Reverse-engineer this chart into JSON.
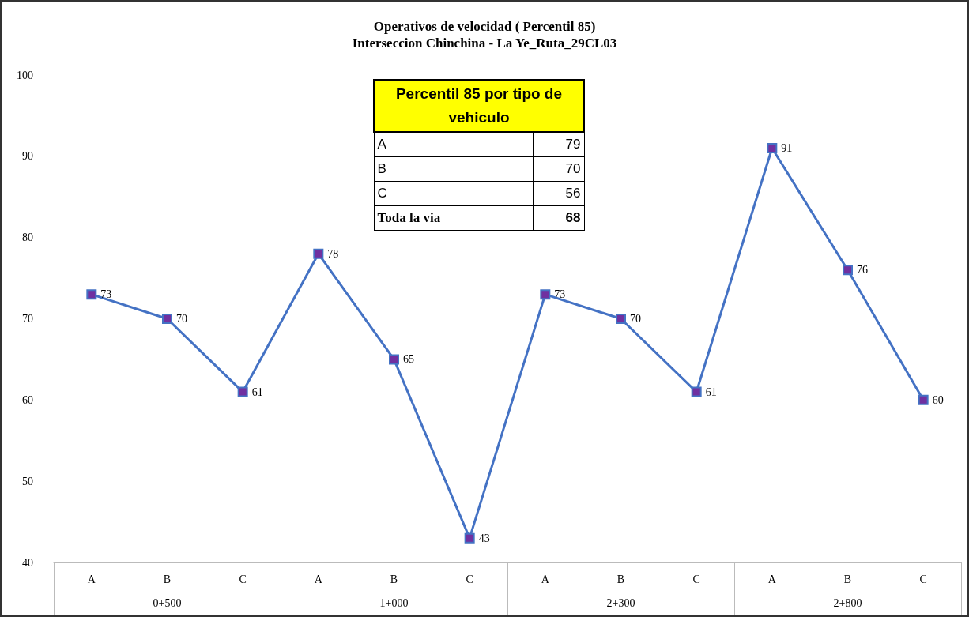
{
  "chart_data": [
    {
      "type": "line",
      "title": "Operativos de velocidad ( Percentil 85)",
      "subtitle": "Interseccion Chinchina - La Ye_Ruta_29CL03",
      "categories": [
        "A",
        "B",
        "C",
        "A",
        "B",
        "C",
        "A",
        "B",
        "C",
        "A",
        "B",
        "C"
      ],
      "annotations": [
        "0+500",
        "1+000",
        "2+300",
        "2+800"
      ],
      "series": [
        {
          "color": "#4472c4",
          "values": [
            73,
            70,
            61,
            78,
            65,
            43,
            73,
            70,
            61,
            91,
            76,
            60
          ]
        }
      ],
      "ylim": [
        40,
        100
      ],
      "yticks": [
        40,
        50,
        60,
        70,
        80,
        90,
        100
      ],
      "grid": false,
      "marker": "square",
      "line_style": "solid",
      "data_labels": true
    },
    {
      "type": "other",
      "title": "Percentil 85 por tipo de vehiculo",
      "categories": [
        "A",
        "B",
        "C",
        "Toda la via"
      ],
      "values": [
        79,
        70,
        56,
        68
      ],
      "data_labels": true
    }
  ]
}
